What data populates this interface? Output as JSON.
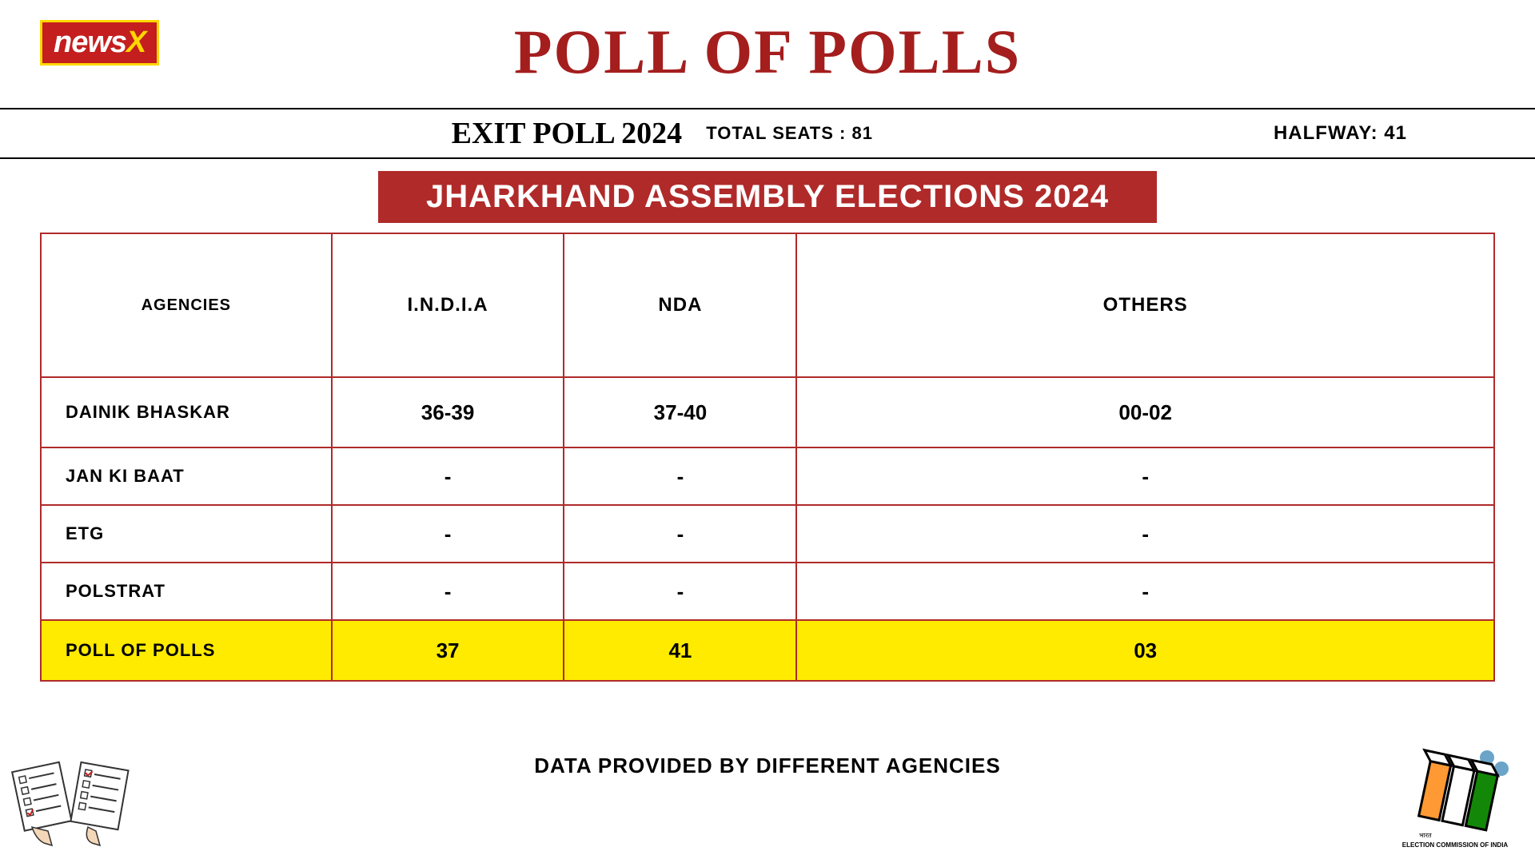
{
  "logo": {
    "prefix": "news",
    "suffix": "X"
  },
  "header": {
    "main_title": "POLL OF POLLS",
    "exit_poll": "EXIT POLL 2024",
    "total_seats_label": "TOTAL SEATS : 81",
    "halfway_label": "HALFWAY: 41"
  },
  "banner": {
    "title": "JHARKHAND ASSEMBLY ELECTIONS 2024"
  },
  "table": {
    "columns": {
      "agencies": "AGENCIES",
      "india": "I.N.D.I.A",
      "nda": "NDA",
      "others": "OTHERS"
    },
    "rows": [
      {
        "agency": "DAINIK BHASKAR",
        "india": "36-39",
        "nda": "37-40",
        "others": "00-02",
        "highlight": false,
        "tall": true
      },
      {
        "agency": "JAN KI BAAT",
        "india": "-",
        "nda": "-",
        "others": "-",
        "highlight": false,
        "tall": false
      },
      {
        "agency": "ETG",
        "india": "-",
        "nda": "-",
        "others": "-",
        "highlight": false,
        "tall": false
      },
      {
        "agency": "POLSTRAT",
        "india": "-",
        "nda": "-",
        "others": "-",
        "highlight": false,
        "tall": false
      },
      {
        "agency": "POLL OF POLLS",
        "india": "37",
        "nda": "41",
        "others": "03",
        "highlight": true,
        "tall": false
      }
    ]
  },
  "footer": {
    "note": "DATA PROVIDED BY DIFFERENT AGENCIES"
  },
  "colors": {
    "brand_red": "#a41e1e",
    "banner_red": "#b02a2a",
    "highlight_yellow": "#ffeb00",
    "logo_gold": "#ffd700",
    "eci_orange": "#ff9933",
    "eci_green": "#138808",
    "eci_blue": "#6ba4c8"
  }
}
